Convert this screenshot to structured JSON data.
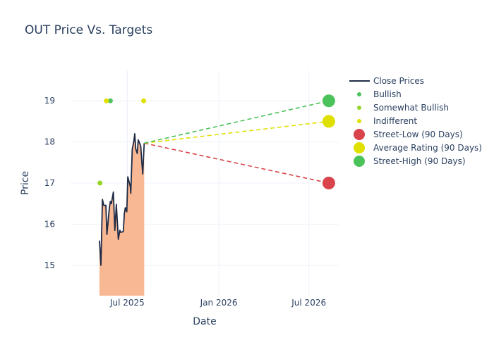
{
  "chart_data": {
    "type": "line",
    "title": "OUT Price Vs. Targets",
    "xlabel": "Date",
    "ylabel": "Price",
    "xlim": [
      "2025-03-09",
      "2026-08-30"
    ],
    "ylim": [
      14.26,
      19.74
    ],
    "x_ticks": [
      {
        "date": "2025-07-01",
        "label": "Jul 2025"
      },
      {
        "date": "2026-01-01",
        "label": "Jan 2026"
      },
      {
        "date": "2026-07-01",
        "label": "Jul 2026"
      }
    ],
    "y_ticks": [
      15,
      16,
      17,
      18,
      19
    ],
    "grid": true,
    "legend_position": "right",
    "colors": {
      "close": "#1f2a44",
      "fill": "#f9b48e",
      "bullish": "#4cc35a",
      "somewhat_bullish": "#97d427",
      "indifferent": "#e0e000",
      "street_low": "#d9434b",
      "average": "#e0e000",
      "street_high": "#4cc35a"
    },
    "close_prices": {
      "name": "Close Prices",
      "x": [
        "2025-05-06",
        "2025-05-09",
        "2025-05-12",
        "2025-05-15",
        "2025-05-19",
        "2025-05-21",
        "2025-05-26",
        "2025-05-28",
        "2025-05-30",
        "2025-06-03",
        "2025-06-06",
        "2025-06-09",
        "2025-06-13",
        "2025-06-16",
        "2025-06-18",
        "2025-06-23",
        "2025-06-25",
        "2025-06-27",
        "2025-06-30",
        "2025-07-02",
        "2025-07-07",
        "2025-07-08",
        "2025-07-11",
        "2025-07-14",
        "2025-07-16",
        "2025-07-18",
        "2025-07-21",
        "2025-07-23",
        "2025-07-25",
        "2025-07-28",
        "2025-07-30",
        "2025-08-01",
        "2025-08-04"
      ],
      "y": [
        15.6,
        15.0,
        16.6,
        16.45,
        16.46,
        15.75,
        16.4,
        16.55,
        16.5,
        16.78,
        15.85,
        16.48,
        15.63,
        15.85,
        15.8,
        15.82,
        16.25,
        16.4,
        16.3,
        17.15,
        16.92,
        16.75,
        17.83,
        18.0,
        18.2,
        17.83,
        17.72,
        18.05,
        17.99,
        17.9,
        17.55,
        17.22,
        17.97
      ]
    },
    "ratings": [
      {
        "name": "Bullish",
        "x": [
          "2025-05-28"
        ],
        "y": [
          19
        ]
      },
      {
        "name": "Somewhat Bullish",
        "x": [
          "2025-05-07"
        ],
        "y": [
          17
        ]
      },
      {
        "name": "Indifferent",
        "x": [
          "2025-05-20",
          "2025-08-03"
        ],
        "y": [
          19,
          19
        ]
      }
    ],
    "targets": [
      {
        "name": "Street-Low (90 Days)",
        "key": "street_low",
        "x": "2026-08-10",
        "y": 17
      },
      {
        "name": "Average Rating (90 Days)",
        "key": "average",
        "x": "2026-08-10",
        "y": 18.5
      },
      {
        "name": "Street-High (90 Days)",
        "key": "street_high",
        "x": "2026-08-10",
        "y": 19
      }
    ],
    "legend": [
      "Close Prices",
      "Bullish",
      "Somewhat Bullish",
      "Indifferent",
      "Street-Low (90 Days)",
      "Average Rating (90 Days)",
      "Street-High (90 Days)"
    ]
  }
}
